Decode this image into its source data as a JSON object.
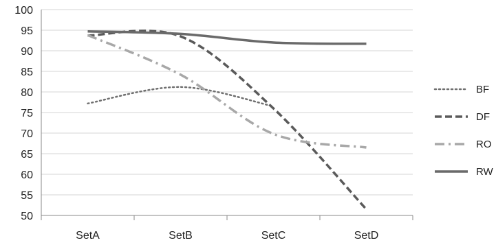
{
  "chart_data": {
    "type": "line",
    "title": "",
    "xlabel": "",
    "ylabel": "",
    "categories": [
      "SetA",
      "SetB",
      "SetC",
      "SetD"
    ],
    "ylim": [
      50,
      100
    ],
    "ytick_step": 5,
    "grid": true,
    "legend_position": "right",
    "series": [
      {
        "name": "BF",
        "values": [
          77.2,
          81.2,
          76.5,
          null
        ],
        "color": "#6f6f6f",
        "dash": "dotted"
      },
      {
        "name": "DF",
        "values": [
          93.7,
          93.5,
          76.0,
          51.5
        ],
        "color": "#5a5a5a",
        "dash": "dashed"
      },
      {
        "name": "RO",
        "values": [
          93.8,
          84.2,
          69.8,
          66.5
        ],
        "color": "#a8a8a8",
        "dash": "dashdot"
      },
      {
        "name": "RW",
        "values": [
          94.7,
          94.1,
          92.0,
          91.7
        ],
        "color": "#6a6a6a",
        "dash": "solid"
      }
    ]
  }
}
